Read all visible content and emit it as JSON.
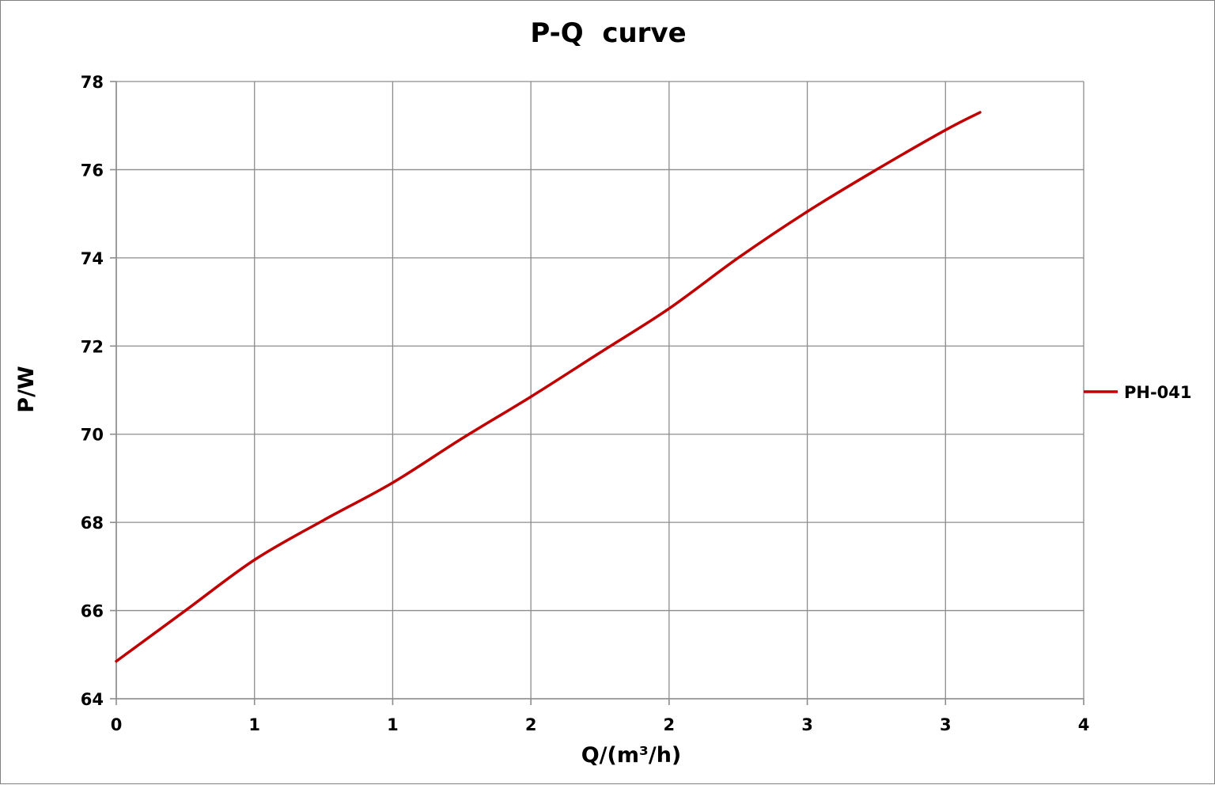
{
  "chart_data": {
    "type": "line",
    "title": "P-Q  curve",
    "xlabel": "Q/(m³/h)",
    "ylabel": "P/W",
    "xlim": [
      0,
      3.5
    ],
    "ylim": [
      64,
      78
    ],
    "x_ticks": [
      0,
      0.5,
      1,
      1.5,
      2,
      2.5,
      3,
      3.5
    ],
    "x_tick_labels": [
      "0",
      "1",
      "1",
      "2",
      "2",
      "3",
      "3",
      "4"
    ],
    "y_ticks": [
      64,
      66,
      68,
      70,
      72,
      74,
      76,
      78
    ],
    "y_tick_labels": [
      "64",
      "66",
      "68",
      "70",
      "72",
      "74",
      "76",
      "78"
    ],
    "grid": true,
    "legend_position": "right",
    "series": [
      {
        "name": "PH-041",
        "color": "#c00000",
        "x": [
          0,
          0.25,
          0.5,
          0.75,
          1.0,
          1.25,
          1.5,
          1.75,
          2.0,
          2.25,
          2.5,
          2.75,
          3.0,
          3.125
        ],
        "y": [
          64.85,
          66.0,
          67.15,
          68.05,
          68.9,
          69.9,
          70.85,
          71.85,
          72.85,
          74.0,
          75.05,
          76.0,
          76.9,
          77.3
        ]
      }
    ]
  }
}
